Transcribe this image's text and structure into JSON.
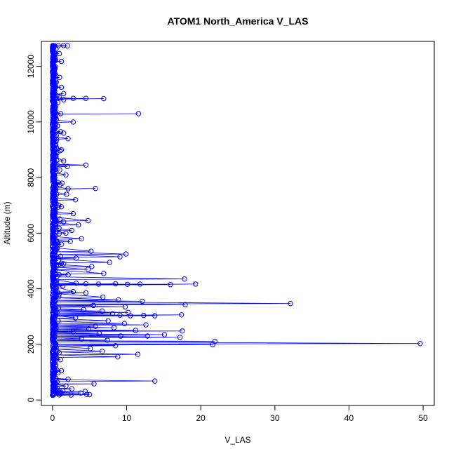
{
  "chart_data": {
    "type": "scatter",
    "title": "ATOM1 North_America V_LAS",
    "xlabel": "V_LAS",
    "ylabel": "Altitude (m)",
    "xlim": [
      -1.5,
      51.5
    ],
    "ylim": [
      -200,
      12900
    ],
    "x_ticks": [
      0,
      10,
      20,
      30,
      40,
      50
    ],
    "y_ticks": [
      0,
      2000,
      4000,
      6000,
      8000,
      10000,
      12000
    ],
    "grid": false,
    "series_color": "#0000FF",
    "series": [
      {
        "points": [
          [
            0.1,
            12750
          ],
          [
            0.3,
            12740
          ],
          [
            0.8,
            12745
          ],
          [
            1.5,
            12750
          ],
          [
            2.0,
            12740
          ],
          [
            0.2,
            12700
          ],
          [
            0.1,
            12600
          ],
          [
            0.2,
            12500
          ],
          [
            0.1,
            12400
          ],
          [
            0.3,
            12300
          ],
          [
            0.2,
            12200
          ],
          [
            1.2,
            12180
          ],
          [
            0.1,
            12100
          ],
          [
            0.2,
            12000
          ],
          [
            0.3,
            11900
          ],
          [
            0.1,
            11800
          ],
          [
            0.2,
            11700
          ],
          [
            0.1,
            11600
          ],
          [
            0.4,
            11500
          ],
          [
            0.2,
            11400
          ],
          [
            0.1,
            11300
          ],
          [
            1.2,
            11250
          ],
          [
            0.3,
            11100
          ],
          [
            0.2,
            11000
          ],
          [
            1.5,
            11020
          ],
          [
            0.1,
            10900
          ],
          [
            2.8,
            10850
          ],
          [
            4.5,
            10850
          ],
          [
            6.9,
            10840
          ],
          [
            1.5,
            10800
          ],
          [
            0.3,
            10700
          ],
          [
            0.2,
            10600
          ],
          [
            0.1,
            10500
          ],
          [
            0.3,
            10400
          ],
          [
            1.1,
            10300
          ],
          [
            11.6,
            10300
          ],
          [
            0.4,
            10200
          ],
          [
            0.2,
            10100
          ],
          [
            2.8,
            10000
          ],
          [
            0.3,
            9900
          ],
          [
            0.2,
            9800
          ],
          [
            0.1,
            9700
          ],
          [
            1.1,
            9650
          ],
          [
            1.5,
            9600
          ],
          [
            0.3,
            9500
          ],
          [
            2.1,
            9400
          ],
          [
            0.2,
            9300
          ],
          [
            0.4,
            9200
          ],
          [
            1.2,
            9000
          ],
          [
            0.3,
            8900
          ],
          [
            0.2,
            8800
          ],
          [
            1.5,
            8600
          ],
          [
            0.3,
            8500
          ],
          [
            4.5,
            8450
          ],
          [
            2.0,
            8400
          ],
          [
            0.2,
            8300
          ],
          [
            0.4,
            8200
          ],
          [
            1.8,
            8100
          ],
          [
            0.3,
            8000
          ],
          [
            0.2,
            7900
          ],
          [
            1.3,
            7800
          ],
          [
            0.3,
            7700
          ],
          [
            2.1,
            7600
          ],
          [
            5.8,
            7610
          ],
          [
            0.2,
            7500
          ],
          [
            1.9,
            7400
          ],
          [
            0.4,
            7300
          ],
          [
            3.1,
            7200
          ],
          [
            0.3,
            7100
          ],
          [
            1.2,
            6950
          ],
          [
            0.2,
            6800
          ],
          [
            2.8,
            6700
          ],
          [
            0.3,
            6600
          ],
          [
            4.8,
            6450
          ],
          [
            1.5,
            6400
          ],
          [
            3.5,
            6300
          ],
          [
            0.4,
            6200
          ],
          [
            2.6,
            6100
          ],
          [
            1.8,
            6000
          ],
          [
            0.3,
            5900
          ],
          [
            3.9,
            5800
          ],
          [
            2.4,
            5700
          ],
          [
            1.2,
            5600
          ],
          [
            0.5,
            5500
          ],
          [
            5.2,
            5350
          ],
          [
            9.9,
            5250
          ],
          [
            9.1,
            5150
          ],
          [
            3.2,
            5100
          ],
          [
            7.7,
            4950
          ],
          [
            1.5,
            4900
          ],
          [
            5.3,
            4800
          ],
          [
            4.8,
            4700
          ],
          [
            6.9,
            4550
          ],
          [
            2.1,
            4500
          ],
          [
            0.6,
            4450
          ],
          [
            17.8,
            4350
          ],
          [
            3.2,
            4200
          ],
          [
            4.5,
            4180
          ],
          [
            6.2,
            4170
          ],
          [
            8.5,
            4180
          ],
          [
            10.1,
            4160
          ],
          [
            11.8,
            4170
          ],
          [
            15.9,
            4150
          ],
          [
            19.3,
            4170
          ],
          [
            1.4,
            4100
          ],
          [
            2.8,
            3900
          ],
          [
            4.5,
            3850
          ],
          [
            6.8,
            3700
          ],
          [
            8.9,
            3600
          ],
          [
            12.1,
            3550
          ],
          [
            32.1,
            3470
          ],
          [
            17.9,
            3430
          ],
          [
            5.5,
            3400
          ],
          [
            9.8,
            3350
          ],
          [
            0.8,
            3300
          ],
          [
            4.2,
            3250
          ],
          [
            6.7,
            3200
          ],
          [
            10.2,
            3150
          ],
          [
            8.1,
            3100
          ],
          [
            9.1,
            3050
          ],
          [
            10.5,
            3030
          ],
          [
            12.3,
            3040
          ],
          [
            13.8,
            3030
          ],
          [
            17.4,
            3060
          ],
          [
            3.1,
            2950
          ],
          [
            7.5,
            2850
          ],
          [
            9.7,
            2750
          ],
          [
            12.6,
            2700
          ],
          [
            5.8,
            2650
          ],
          [
            8.3,
            2600
          ],
          [
            4.9,
            2550
          ],
          [
            11.2,
            2500
          ],
          [
            17.5,
            2480
          ],
          [
            2.8,
            2450
          ],
          [
            6.3,
            2400
          ],
          [
            15.1,
            2350
          ],
          [
            9.2,
            2300
          ],
          [
            12.8,
            2300
          ],
          [
            17.2,
            2250
          ],
          [
            3.9,
            2200
          ],
          [
            7.4,
            2150
          ],
          [
            21.9,
            2110
          ],
          [
            49.6,
            2030
          ],
          [
            21.6,
            1990
          ],
          [
            8.5,
            1950
          ],
          [
            5.1,
            1850
          ],
          [
            6.7,
            1750
          ],
          [
            11.5,
            1640
          ],
          [
            8.8,
            1550
          ],
          [
            0.9,
            1700
          ],
          [
            0.2,
            1500
          ],
          [
            0.1,
            1300
          ],
          [
            0.3,
            1100
          ],
          [
            1.2,
            1050
          ],
          [
            0.2,
            900
          ],
          [
            0.1,
            800
          ],
          [
            2.1,
            750
          ],
          [
            13.8,
            680
          ],
          [
            0.6,
            650
          ],
          [
            0.4,
            600
          ],
          [
            5.6,
            580
          ],
          [
            1.8,
            500
          ],
          [
            0.3,
            450
          ],
          [
            2.6,
            400
          ],
          [
            1.4,
            330
          ],
          [
            4.4,
            310
          ],
          [
            0.2,
            300
          ],
          [
            3.8,
            250
          ],
          [
            1.1,
            220
          ],
          [
            4.6,
            200
          ],
          [
            5.0,
            190
          ],
          [
            0.9,
            180
          ],
          [
            2.5,
            175
          ],
          [
            0.1,
            170
          ]
        ]
      }
    ]
  }
}
